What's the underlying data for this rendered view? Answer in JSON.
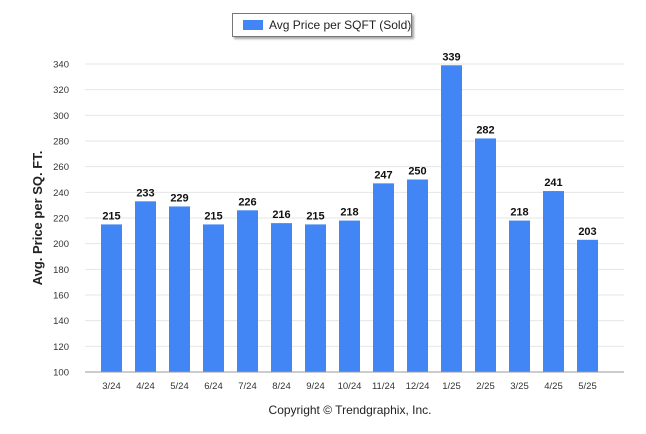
{
  "chart_data": {
    "type": "bar",
    "legend": {
      "label": "Avg Price per SQFT (Sold)",
      "placement": "top-center"
    },
    "ylabel": "Avg. Price per SQ. FT.",
    "xlabel": "",
    "ylim": [
      100,
      340
    ],
    "yticks": [
      100,
      120,
      140,
      160,
      180,
      200,
      220,
      240,
      260,
      280,
      300,
      320,
      340
    ],
    "categories": [
      "3/24",
      "4/24",
      "5/24",
      "6/24",
      "7/24",
      "8/24",
      "9/24",
      "10/24",
      "11/24",
      "12/24",
      "1/25",
      "2/25",
      "3/25",
      "4/25",
      "5/25"
    ],
    "series": [
      {
        "name": "Avg Price per SQFT (Sold)",
        "values": [
          215,
          233,
          229,
          215,
          226,
          216,
          215,
          218,
          247,
          250,
          339,
          282,
          218,
          241,
          203
        ]
      }
    ],
    "grid": true,
    "color": "#4285f4"
  },
  "footer": {
    "copyright": "Copyright © Trendgraphix, Inc."
  }
}
